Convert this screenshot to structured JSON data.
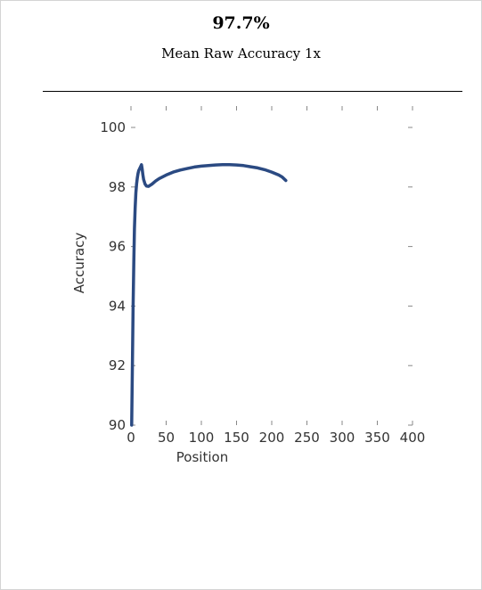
{
  "header": {
    "value": "97.7%",
    "subtitle": "Mean Raw Accuracy 1x"
  },
  "colors": {
    "line": "#2b4a82",
    "axis": "#888888",
    "text": "#333333"
  },
  "chart_data": {
    "type": "line",
    "xlabel": "Position",
    "ylabel": "Accuracy",
    "xlim": [
      0,
      400
    ],
    "ylim": [
      90,
      100
    ],
    "x_ticks": [
      0,
      50,
      100,
      150,
      200,
      250,
      300,
      350,
      400
    ],
    "y_ticks": [
      90,
      92,
      94,
      96,
      98,
      100
    ],
    "grid": false,
    "series": [
      {
        "x": [
          1,
          2,
          3,
          4,
          5,
          6,
          7,
          8,
          9,
          10,
          11,
          12,
          13,
          14,
          15,
          16,
          17,
          18,
          20,
          22,
          25,
          30,
          35,
          40,
          50,
          60,
          70,
          80,
          90,
          100,
          110,
          120,
          130,
          140,
          150,
          160,
          170,
          180,
          190,
          200,
          210,
          215,
          220
        ],
        "y": [
          90.0,
          92.0,
          94.0,
          95.5,
          96.6,
          97.3,
          97.8,
          98.1,
          98.3,
          98.45,
          98.55,
          98.6,
          98.65,
          98.7,
          98.75,
          98.6,
          98.4,
          98.25,
          98.1,
          98.03,
          98.02,
          98.1,
          98.2,
          98.28,
          98.4,
          98.5,
          98.57,
          98.62,
          98.67,
          98.7,
          98.72,
          98.74,
          98.75,
          98.75,
          98.74,
          98.72,
          98.68,
          98.64,
          98.58,
          98.5,
          98.4,
          98.33,
          98.22
        ]
      }
    ]
  }
}
